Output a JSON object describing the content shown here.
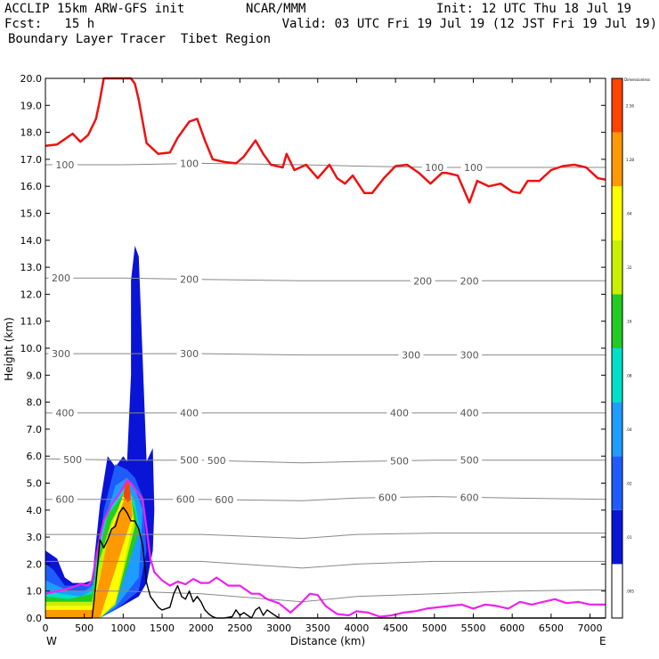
{
  "header": {
    "line1_left": "ACCLIP 15km ARW-GFS init",
    "line1_mid": "NCAR/MMM",
    "line1_right": "Init: 12 UTC Thu 18 Jul 19",
    "line2_left": "Fcst:   15 h",
    "line2_right": "Valid: 03 UTC Fri 19 Jul 19 (12 JST Fri 19 Jul 19)",
    "line3_left": "Boundary Layer Tracer  Tibet Region"
  },
  "colors": {
    "tropopause": "#ee1111",
    "pbl_top": "#ee22ee",
    "terrain": "#000000",
    "pressure_contour": "#888888"
  },
  "chart_data": {
    "type": "heatmap",
    "title": "Boundary Layer Tracer  Tibet Region",
    "xlabel": "Distance (km)",
    "ylabel": "Height (km)",
    "xlim": [
      0,
      7200
    ],
    "ylim": [
      0,
      20
    ],
    "x_ticks": [
      "0",
      "500",
      "1000",
      "1500",
      "2000",
      "2500",
      "3000",
      "3500",
      "4000",
      "4500",
      "5000",
      "5500",
      "6000",
      "6500",
      "7000"
    ],
    "y_ticks": [
      "0.0",
      "1.0",
      "2.0",
      "3.0",
      "4.0",
      "5.0",
      "6.0",
      "7.0",
      "8.0",
      "9.0",
      "10.0",
      "11.0",
      "12.0",
      "13.0",
      "14.0",
      "15.0",
      "16.0",
      "17.0",
      "18.0",
      "19.0",
      "20.0"
    ],
    "x_end_labels": {
      "left": "W",
      "right": "E"
    },
    "colorbar": {
      "title": "Dimensionless",
      "levels": [
        ".005",
        ".01",
        ".02",
        ".04",
        ".08",
        ".16",
        ".32",
        ".64",
        "1.28",
        "2.56"
      ],
      "colors": [
        "#ffffff",
        "#0a14d6",
        "#1e5cff",
        "#1e9cff",
        "#00e0c8",
        "#22cc22",
        "#c8f000",
        "#ffff00",
        "#ff9900",
        "#ff4400"
      ]
    },
    "pressure_contours": [
      {
        "label": "100",
        "level_km": [
          16.8,
          16.8,
          16.85,
          16.8,
          16.75,
          16.7,
          16.7,
          16.7
        ],
        "labels_at_km": [
          250,
          1850,
          5000,
          5500
        ]
      },
      {
        "label": "200",
        "level_km": [
          12.6,
          12.6,
          12.55,
          12.5,
          12.5,
          12.5,
          12.5,
          12.5
        ],
        "labels_at_km": [
          200,
          1850,
          4850,
          5450
        ]
      },
      {
        "label": "300",
        "level_km": [
          9.8,
          9.8,
          9.8,
          9.75,
          9.75,
          9.75,
          9.75,
          9.75
        ],
        "labels_at_km": [
          200,
          1850,
          4700,
          5450
        ]
      },
      {
        "label": "400",
        "level_km": [
          7.6,
          7.6,
          7.6,
          7.6,
          7.6,
          7.6,
          7.6,
          7.6
        ],
        "labels_at_km": [
          250,
          1850,
          4550,
          5450
        ]
      },
      {
        "label": "500",
        "level_km": [
          5.9,
          5.85,
          5.85,
          5.75,
          5.8,
          5.85,
          5.85,
          5.85
        ],
        "labels_at_km": [
          350,
          1850,
          2200,
          4550,
          5450
        ]
      },
      {
        "label": "600",
        "level_km": [
          4.4,
          4.4,
          4.4,
          4.35,
          4.45,
          4.5,
          4.45,
          4.4
        ],
        "labels_at_km": [
          250,
          1800,
          2300,
          4400,
          5450
        ]
      },
      {
        "label": "",
        "level_km": [
          3.1,
          3.1,
          3.1,
          2.95,
          3.1,
          3.15,
          3.15,
          3.15
        ],
        "labels_at_km": []
      },
      {
        "label": "",
        "level_km": [
          2.1,
          2.1,
          2.1,
          1.85,
          2.0,
          2.1,
          2.1,
          2.1
        ],
        "labels_at_km": []
      },
      {
        "label": "",
        "level_km": [
          1.0,
          1.0,
          0.9,
          0.6,
          0.8,
          0.9,
          1.0,
          1.05
        ],
        "labels_at_km": []
      }
    ],
    "pressure_x_km": [
      0,
      1000,
      2000,
      3300,
      4000,
      5000,
      6000,
      7200
    ],
    "series": [
      {
        "name": "tropopause",
        "x": [
          0,
          150,
          300,
          350,
          450,
          550,
          650,
          700,
          750,
          800,
          900,
          1000,
          1050,
          1100,
          1150,
          1200,
          1300,
          1450,
          1600,
          1700,
          1850,
          1950,
          2050,
          2150,
          2300,
          2450,
          2550,
          2650,
          2700,
          2800,
          2900,
          3050,
          3100,
          3200,
          3350,
          3500,
          3650,
          3750,
          3850,
          3950,
          4100,
          4200,
          4350,
          4500,
          4650,
          4800,
          4950,
          5100,
          5150,
          5300,
          5450,
          5550,
          5700,
          5850,
          6000,
          6100,
          6200,
          6350,
          6500,
          6650,
          6800,
          6950,
          7100,
          7200
        ],
        "y": [
          17.5,
          17.55,
          17.85,
          17.95,
          17.65,
          17.9,
          18.5,
          19.2,
          20.0,
          20.0,
          20.0,
          20.0,
          20.0,
          20.0,
          19.8,
          19.2,
          17.6,
          17.2,
          17.25,
          17.8,
          18.4,
          18.5,
          17.7,
          17.0,
          16.9,
          16.85,
          17.1,
          17.5,
          17.7,
          17.2,
          16.8,
          16.7,
          17.2,
          16.6,
          16.8,
          16.3,
          16.8,
          16.3,
          16.1,
          16.4,
          15.75,
          15.75,
          16.3,
          16.75,
          16.8,
          16.5,
          16.1,
          16.5,
          16.5,
          16.4,
          15.4,
          16.2,
          16.0,
          16.1,
          15.8,
          15.75,
          16.2,
          16.2,
          16.6,
          16.75,
          16.8,
          16.7,
          16.3,
          16.25
        ]
      },
      {
        "name": "pbl_top",
        "x": [
          0,
          150,
          300,
          450,
          550,
          600,
          650,
          700,
          750,
          850,
          950,
          1050,
          1100,
          1150,
          1250,
          1300,
          1350,
          1400,
          1500,
          1600,
          1700,
          1800,
          1900,
          2000,
          2100,
          2200,
          2350,
          2500,
          2650,
          2750,
          2850,
          3000,
          3150,
          3300,
          3400,
          3500,
          3600,
          3750,
          3900,
          4000,
          4150,
          4300,
          4450,
          4600,
          4750,
          4900,
          5050,
          5200,
          5350,
          5500,
          5650,
          5800,
          5950,
          6100,
          6250,
          6400,
          6550,
          6700,
          6850,
          7000,
          7200
        ],
        "y": [
          0.9,
          1.0,
          1.1,
          1.25,
          1.2,
          1.4,
          2.2,
          3.0,
          3.6,
          4.2,
          4.6,
          5.1,
          5.0,
          4.8,
          4.4,
          3.3,
          2.2,
          1.7,
          1.4,
          1.2,
          1.35,
          1.25,
          1.45,
          1.3,
          1.3,
          1.5,
          1.2,
          1.2,
          0.9,
          0.9,
          0.7,
          0.55,
          0.2,
          0.6,
          0.9,
          0.85,
          0.45,
          0.15,
          0.1,
          0.25,
          0.2,
          0.05,
          0.1,
          0.2,
          0.25,
          0.35,
          0.4,
          0.45,
          0.5,
          0.35,
          0.5,
          0.45,
          0.35,
          0.6,
          0.5,
          0.6,
          0.7,
          0.55,
          0.6,
          0.5,
          0.5
        ]
      },
      {
        "name": "terrain",
        "x": [
          0,
          300,
          600,
          650,
          700,
          750,
          800,
          850,
          900,
          950,
          1000,
          1050,
          1100,
          1150,
          1200,
          1250,
          1300,
          1350,
          1400,
          1450,
          1500,
          1550,
          1600,
          1650,
          1700,
          1750,
          1800,
          1850,
          1900,
          1950,
          2000,
          2050,
          2100,
          2150,
          2200,
          2300,
          2400,
          2450,
          2500,
          2550,
          2600,
          2650,
          2700,
          2750,
          2800,
          2850,
          2900,
          3000,
          3100,
          7200
        ],
        "y": [
          0,
          0,
          0,
          1.3,
          2.9,
          2.6,
          2.9,
          3.3,
          3.4,
          3.9,
          4.1,
          3.9,
          3.6,
          3.6,
          3.3,
          2.7,
          1.3,
          0.8,
          0.6,
          0.4,
          0.3,
          0.35,
          0.4,
          0.9,
          1.2,
          0.8,
          0.7,
          1.0,
          0.6,
          0.8,
          0.6,
          0.3,
          0.15,
          0.05,
          0,
          0,
          0.05,
          0.3,
          0.1,
          0.2,
          0.1,
          0,
          0.3,
          0.4,
          0.1,
          0.3,
          0.2,
          0,
          0,
          0
        ]
      }
    ],
    "tracer_fields": [
      {
        "level": ".01",
        "x": [
          0,
          50,
          150,
          250,
          350,
          500,
          600,
          700,
          800,
          900,
          950,
          1000,
          1050,
          1100,
          1100,
          1150,
          1150,
          1200,
          1300,
          1380,
          1400,
          1380,
          1300,
          1200,
          900,
          700,
          650,
          0
        ],
        "y": [
          2.5,
          2.4,
          2.2,
          1.5,
          1.3,
          1.3,
          1.4,
          4.2,
          6.0,
          5.6,
          5.8,
          6.0,
          5.8,
          9.0,
          12.5,
          13.8,
          13.8,
          13.4,
          5.8,
          6.3,
          4.0,
          2.5,
          1.3,
          0.8,
          0.3,
          0.1,
          0,
          0
        ]
      },
      {
        "level": ".02",
        "x": [
          0,
          100,
          250,
          500,
          650,
          750,
          900,
          1050,
          1150,
          1250,
          1300,
          1200,
          900,
          700,
          0
        ],
        "y": [
          2.0,
          1.8,
          1.2,
          1.2,
          1.5,
          4.0,
          5.7,
          5.5,
          5.2,
          4.5,
          2.5,
          1.0,
          0.3,
          0,
          0
        ]
      },
      {
        "level": ".04",
        "x": [
          0,
          150,
          300,
          500,
          650,
          750,
          900,
          1050,
          1150,
          1250,
          1200,
          900,
          700,
          0
        ],
        "y": [
          1.4,
          1.2,
          1.0,
          1.0,
          1.3,
          3.5,
          4.9,
          5.2,
          4.8,
          4.0,
          1.5,
          0.4,
          0,
          0
        ]
      },
      {
        "level": ".08",
        "x": [
          0,
          200,
          450,
          600,
          700,
          800,
          950,
          1050,
          1150,
          1200,
          900,
          700,
          0
        ],
        "y": [
          1.0,
          0.9,
          0.8,
          1.0,
          3.0,
          4.0,
          4.6,
          4.9,
          4.3,
          3.5,
          0.5,
          0,
          0
        ]
      },
      {
        "level": ".16",
        "x": [
          0,
          300,
          600,
          700,
          800,
          950,
          1050,
          1150,
          1200,
          900,
          700,
          0
        ],
        "y": [
          0.8,
          0.7,
          0.9,
          2.6,
          3.8,
          4.4,
          4.8,
          4.0,
          3.2,
          0.5,
          0,
          0
        ]
      },
      {
        "level": ".32",
        "x": [
          0,
          600,
          700,
          850,
          1000,
          1050,
          1100,
          1150,
          900,
          700,
          0
        ],
        "y": [
          0.6,
          0.6,
          2.2,
          3.6,
          4.4,
          4.9,
          4.5,
          3.4,
          0.5,
          0,
          0
        ]
      },
      {
        "level": ".64",
        "x": [
          0,
          600,
          720,
          850,
          980,
          1050,
          1100,
          1130,
          900,
          700,
          0
        ],
        "y": [
          0.45,
          0.45,
          1.8,
          3.4,
          4.4,
          5.0,
          4.5,
          3.6,
          0.6,
          0,
          0
        ]
      },
      {
        "level": "1.28",
        "x": [
          0,
          600,
          700,
          800,
          900,
          1000,
          1050,
          1100,
          1120,
          700,
          0
        ],
        "y": [
          0.3,
          0.3,
          1.5,
          2.9,
          3.6,
          4.3,
          4.8,
          4.4,
          3.8,
          0,
          0
        ]
      },
      {
        "level": "2.56",
        "x": [
          1000,
          1040,
          1080,
          1100,
          1060
        ],
        "y": [
          4.5,
          5.2,
          5.0,
          4.4,
          4.3
        ]
      }
    ]
  }
}
